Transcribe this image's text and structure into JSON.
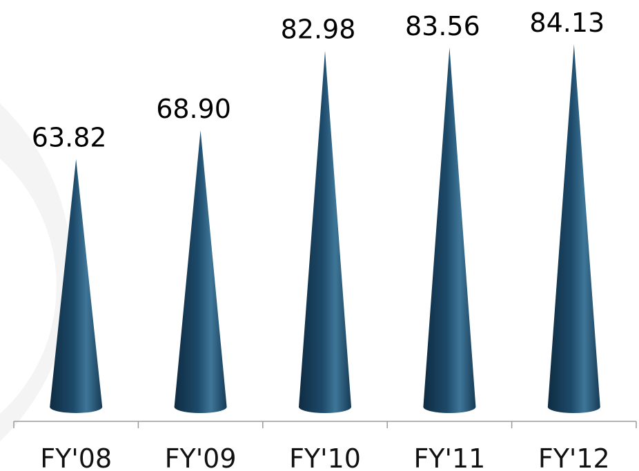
{
  "chart_data": {
    "type": "bar",
    "bar_shape": "cone",
    "categories": [
      "FY'08",
      "FY'09",
      "FY'10",
      "FY'11",
      "FY'12"
    ],
    "values": [
      63.82,
      68.9,
      82.98,
      83.56,
      84.13
    ],
    "data_labels": [
      "63.82",
      "68.90",
      "82.98",
      "83.56",
      "84.13"
    ],
    "title": "",
    "xlabel": "",
    "ylabel": "",
    "grid": false,
    "legend": "none",
    "colors": {
      "bar": "#1d4a6a",
      "bar_highlight": "#3f7698",
      "bar_shadow": "#0f2c42",
      "axis": "#9a9a9a",
      "text": "#000000",
      "background_ring": "#f2f2f2"
    }
  }
}
